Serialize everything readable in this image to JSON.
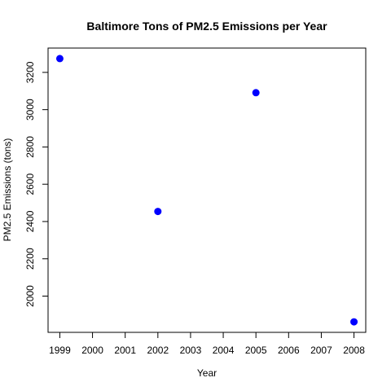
{
  "chart_data": {
    "type": "scatter",
    "title": "Baltimore Tons of PM2.5 Emissions per Year",
    "xlabel": "Year",
    "ylabel": "PM2.5 Emissions (tons)",
    "x": [
      1999,
      2002,
      2005,
      2008
    ],
    "series": [
      {
        "values": [
          3274,
          2454,
          3091,
          1862
        ],
        "color": "#0000FF"
      }
    ],
    "xlim": [
      1999,
      2008
    ],
    "ylim": [
      1862,
      3274
    ],
    "x_ticks": [
      1999,
      2000,
      2001,
      2002,
      2003,
      2004,
      2005,
      2006,
      2007,
      2008
    ],
    "y_ticks": [
      2000,
      2200,
      2400,
      2600,
      2800,
      3000,
      3200
    ],
    "x_tick_labels": [
      "1999",
      "2000",
      "2001",
      "2002",
      "2003",
      "2004",
      "2005",
      "2006",
      "2007",
      "2008"
    ],
    "y_tick_labels": [
      "2000",
      "2200",
      "2400",
      "2600",
      "2800",
      "3000",
      "3200"
    ],
    "grid": false,
    "legend": "none"
  }
}
